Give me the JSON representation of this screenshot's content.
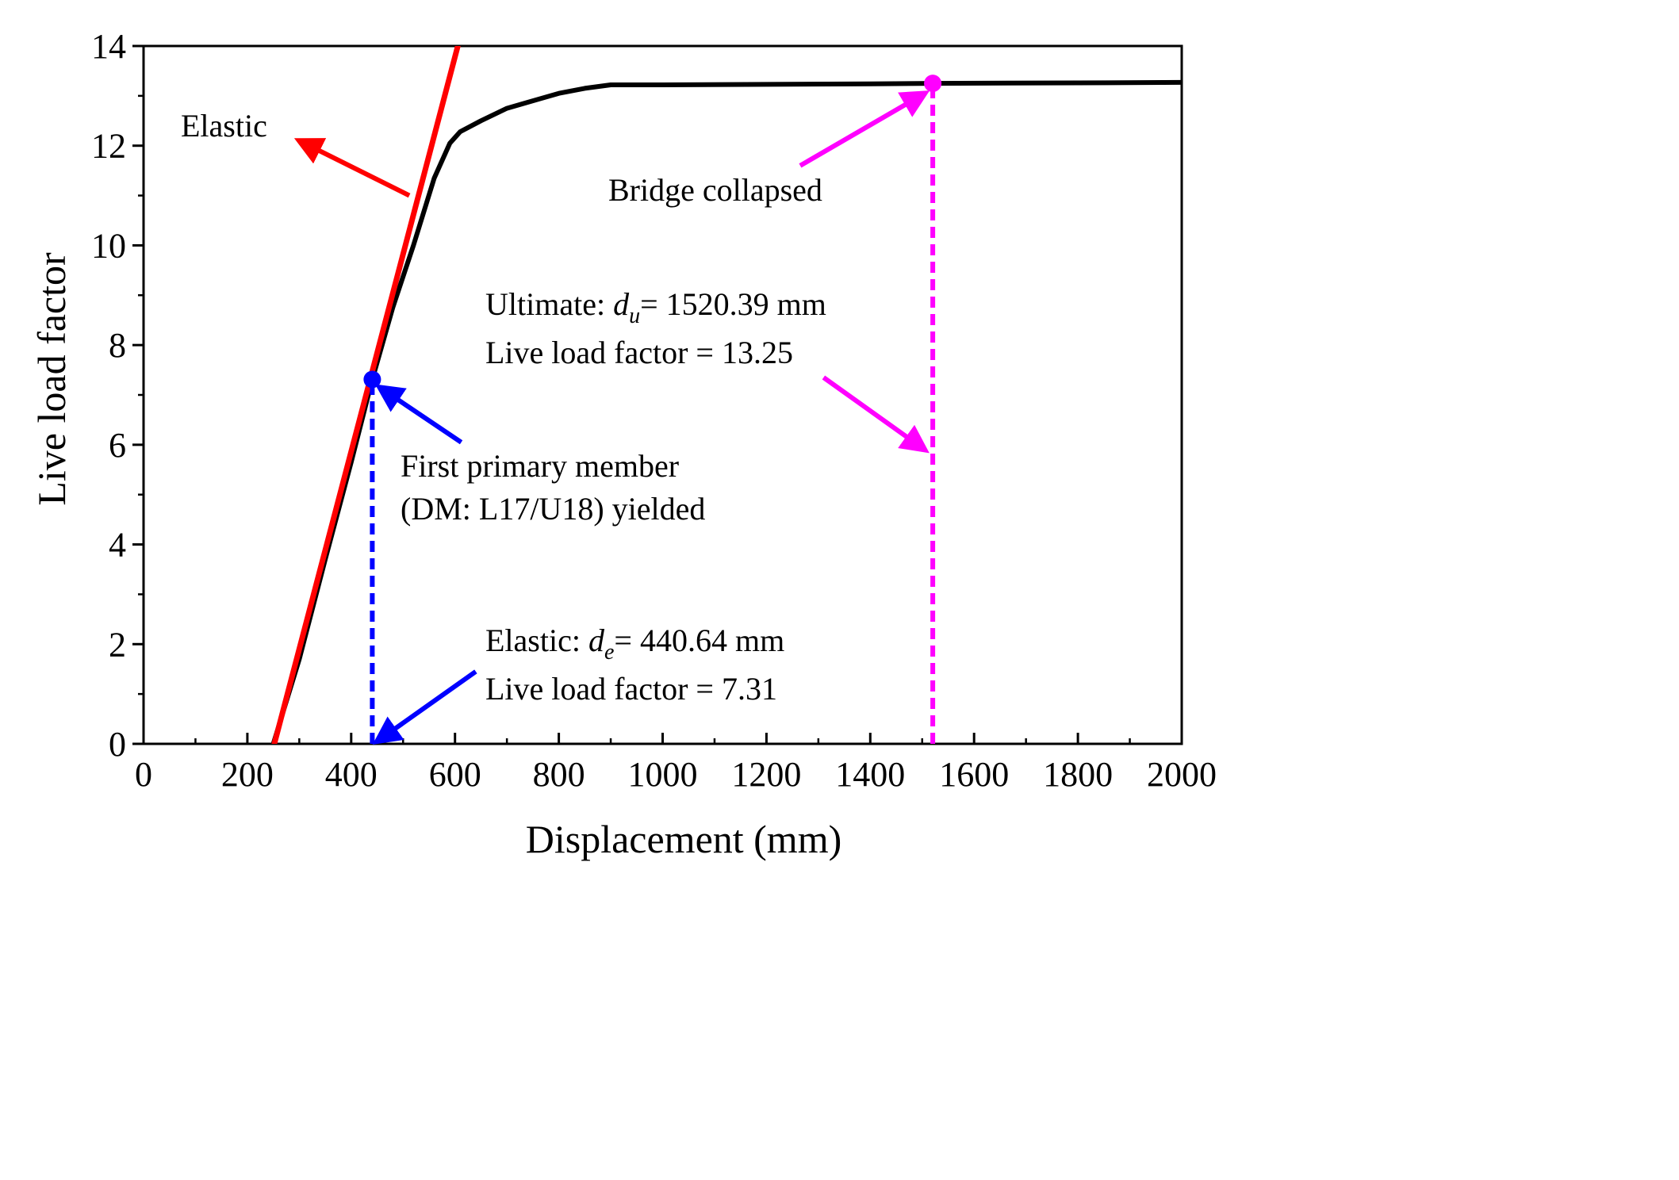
{
  "chart_data": {
    "type": "line",
    "xlabel": "Displacement (mm)",
    "ylabel": "Live load factor",
    "xlim": [
      0,
      2000
    ],
    "ylim": [
      0,
      14
    ],
    "x_ticks": [
      0,
      200,
      400,
      600,
      800,
      1000,
      1200,
      1400,
      1600,
      1800,
      2000
    ],
    "y_ticks": [
      0,
      2,
      4,
      6,
      8,
      10,
      12,
      14
    ],
    "grid": false,
    "series": [
      {
        "name": "",
        "color": "#000000",
        "x": [
          250,
          300,
          350,
          400,
          440.64,
          480,
          520,
          560,
          590,
          610,
          650,
          700,
          750,
          800,
          850,
          900,
          1000,
          1200,
          1400,
          1520.39,
          1800,
          2000
        ],
        "y": [
          0,
          1.7,
          3.7,
          5.65,
          7.31,
          8.75,
          10.0,
          11.35,
          12.05,
          12.28,
          12.5,
          12.75,
          12.9,
          13.05,
          13.15,
          13.22,
          13.22,
          13.23,
          13.24,
          13.25,
          13.26,
          13.27
        ]
      },
      {
        "name": "",
        "color": "#ff0000",
        "x": [
          252,
          608
        ],
        "y": [
          0,
          14.1
        ]
      }
    ],
    "markers": [
      {
        "name": "elastic-point",
        "x": 440.64,
        "y": 7.31,
        "color": "#0000ff"
      },
      {
        "name": "ultimate-point",
        "x": 1520.39,
        "y": 13.25,
        "color": "#ff00ff"
      }
    ],
    "guides": [
      {
        "name": "elastic-dashed-guide",
        "x": 440.64,
        "y_from": 0,
        "y_to": 7.31,
        "color": "#0000ff"
      },
      {
        "name": "ultimate-dashed-guide",
        "x": 1520.39,
        "y_from": 0,
        "y_to": 13.25,
        "color": "#ff00ff"
      }
    ],
    "annotations": {
      "elastic_label": "Elastic",
      "bridge_collapsed": "Bridge collapsed",
      "ultimate_prefix": "Ultimate: ",
      "ultimate_symbol": "d",
      "ultimate_subscript": "u",
      "ultimate_value": "= 1520.39 mm",
      "ultimate_factor": "Live load factor = 13.25",
      "first_member_line1": "First primary member",
      "first_member_line2": "(DM: L17/U18) yielded",
      "elastic_prefix": "Elastic: ",
      "elastic_symbol": "d",
      "elastic_subscript": "e",
      "elastic_value": "= 440.64 mm",
      "elastic_factor": "Live load factor = 7.31"
    },
    "arrows": [
      {
        "name": "elastic-label-arrow",
        "color": "#ff0000",
        "from": [
          512,
          11.0
        ],
        "to": [
          300,
          12.1
        ]
      },
      {
        "name": "bridge-collapsed-arrow",
        "color": "#ff00ff",
        "from": [
          1265,
          11.6
        ],
        "to": [
          1505,
          13.05
        ]
      },
      {
        "name": "ultimate-value-arrow",
        "color": "#ff00ff",
        "from": [
          1310,
          7.35
        ],
        "to": [
          1505,
          5.9
        ]
      },
      {
        "name": "first-member-arrow",
        "color": "#0000ff",
        "from": [
          612,
          6.05
        ],
        "to": [
          455,
          7.15
        ]
      },
      {
        "name": "elastic-value-arrow",
        "color": "#0000ff",
        "from": [
          640,
          1.45
        ],
        "to": [
          450,
          0.05
        ]
      }
    ]
  }
}
